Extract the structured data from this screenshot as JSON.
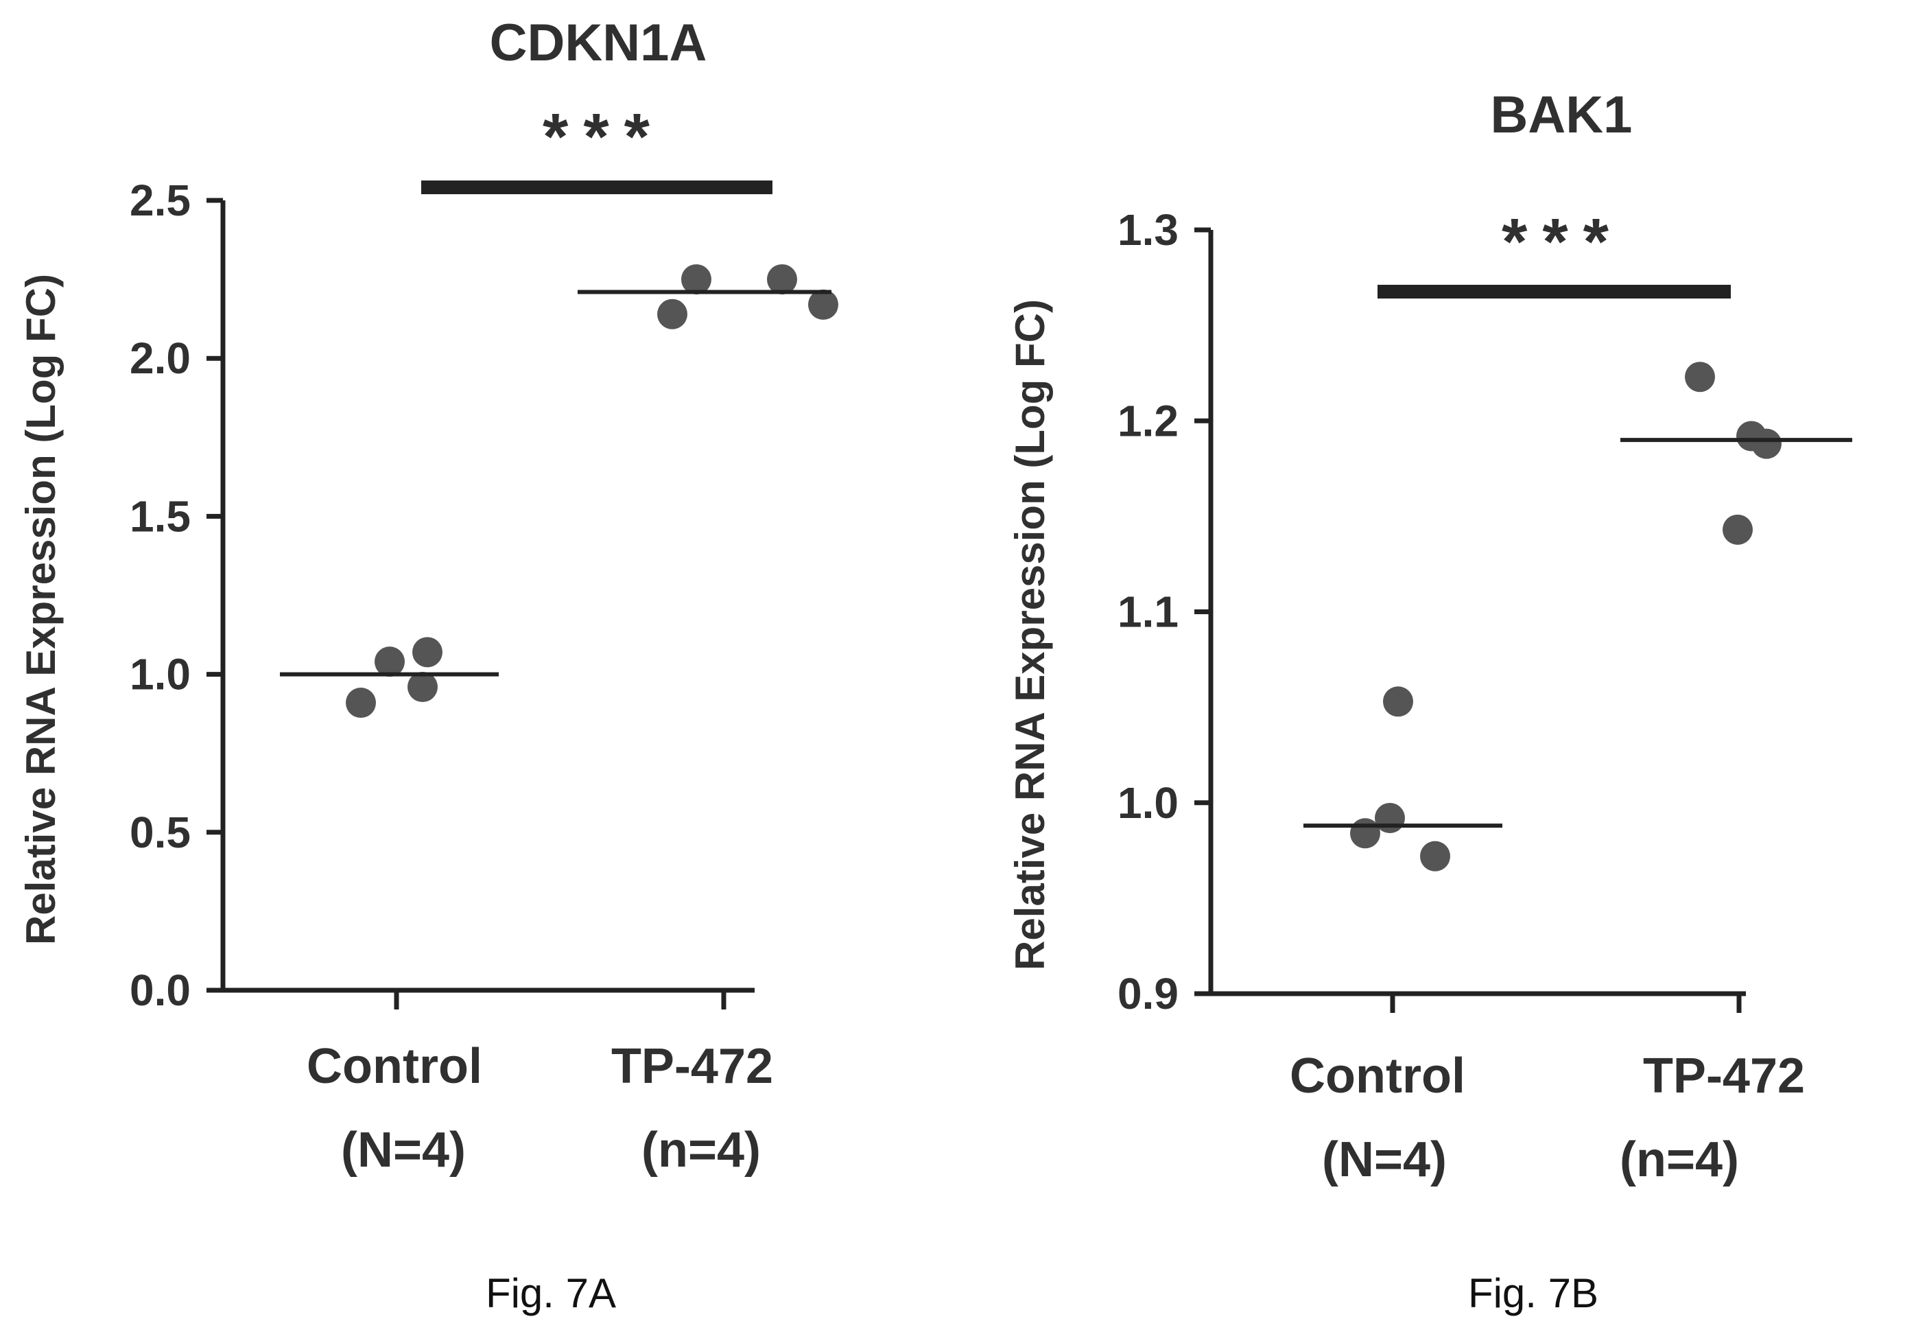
{
  "chart_data": [
    {
      "type": "scatter",
      "title": "CDKN1A",
      "ylabel": "Relative RNA Expression (Log FC)",
      "xlabel": "",
      "categories": [
        {
          "line1": "Control",
          "line2": "(N=4)"
        },
        {
          "line1": "TP-472",
          "line2": "(n=4)"
        }
      ],
      "series": [
        {
          "values": [
            0.91,
            1.04,
            0.96,
            1.07
          ],
          "median": 1.0
        },
        {
          "values": [
            2.14,
            2.25,
            2.25,
            2.17
          ],
          "median": 2.21
        }
      ],
      "ylim": [
        0.0,
        2.5
      ],
      "yticks": [
        "0.0",
        "0.5",
        "1.0",
        "1.5",
        "2.0",
        "2.5"
      ],
      "significance": "***",
      "caption": "Fig. 7A",
      "grid": false,
      "colors": {
        "points": "#555555",
        "lines": "#222222",
        "text": "#303030"
      }
    },
    {
      "type": "scatter",
      "title": "BAK1",
      "ylabel": "Relative RNA Expression (Log FC)",
      "xlabel": "",
      "categories": [
        {
          "line1": "Control",
          "line2": "(N=4)"
        },
        {
          "line1": "TP-472",
          "line2": "(n=4)"
        }
      ],
      "series": [
        {
          "values": [
            1.053,
            0.992,
            0.984,
            0.972
          ],
          "median": 0.988
        },
        {
          "values": [
            1.223,
            1.192,
            1.188,
            1.143
          ],
          "median": 1.19
        }
      ],
      "ylim": [
        0.9,
        1.3
      ],
      "yticks": [
        "0.9",
        "1.0",
        "1.1",
        "1.2",
        "1.3"
      ],
      "significance": "***",
      "caption": "Fig. 7B",
      "grid": false,
      "colors": {
        "points": "#555555",
        "lines": "#222222",
        "text": "#303030"
      }
    }
  ]
}
